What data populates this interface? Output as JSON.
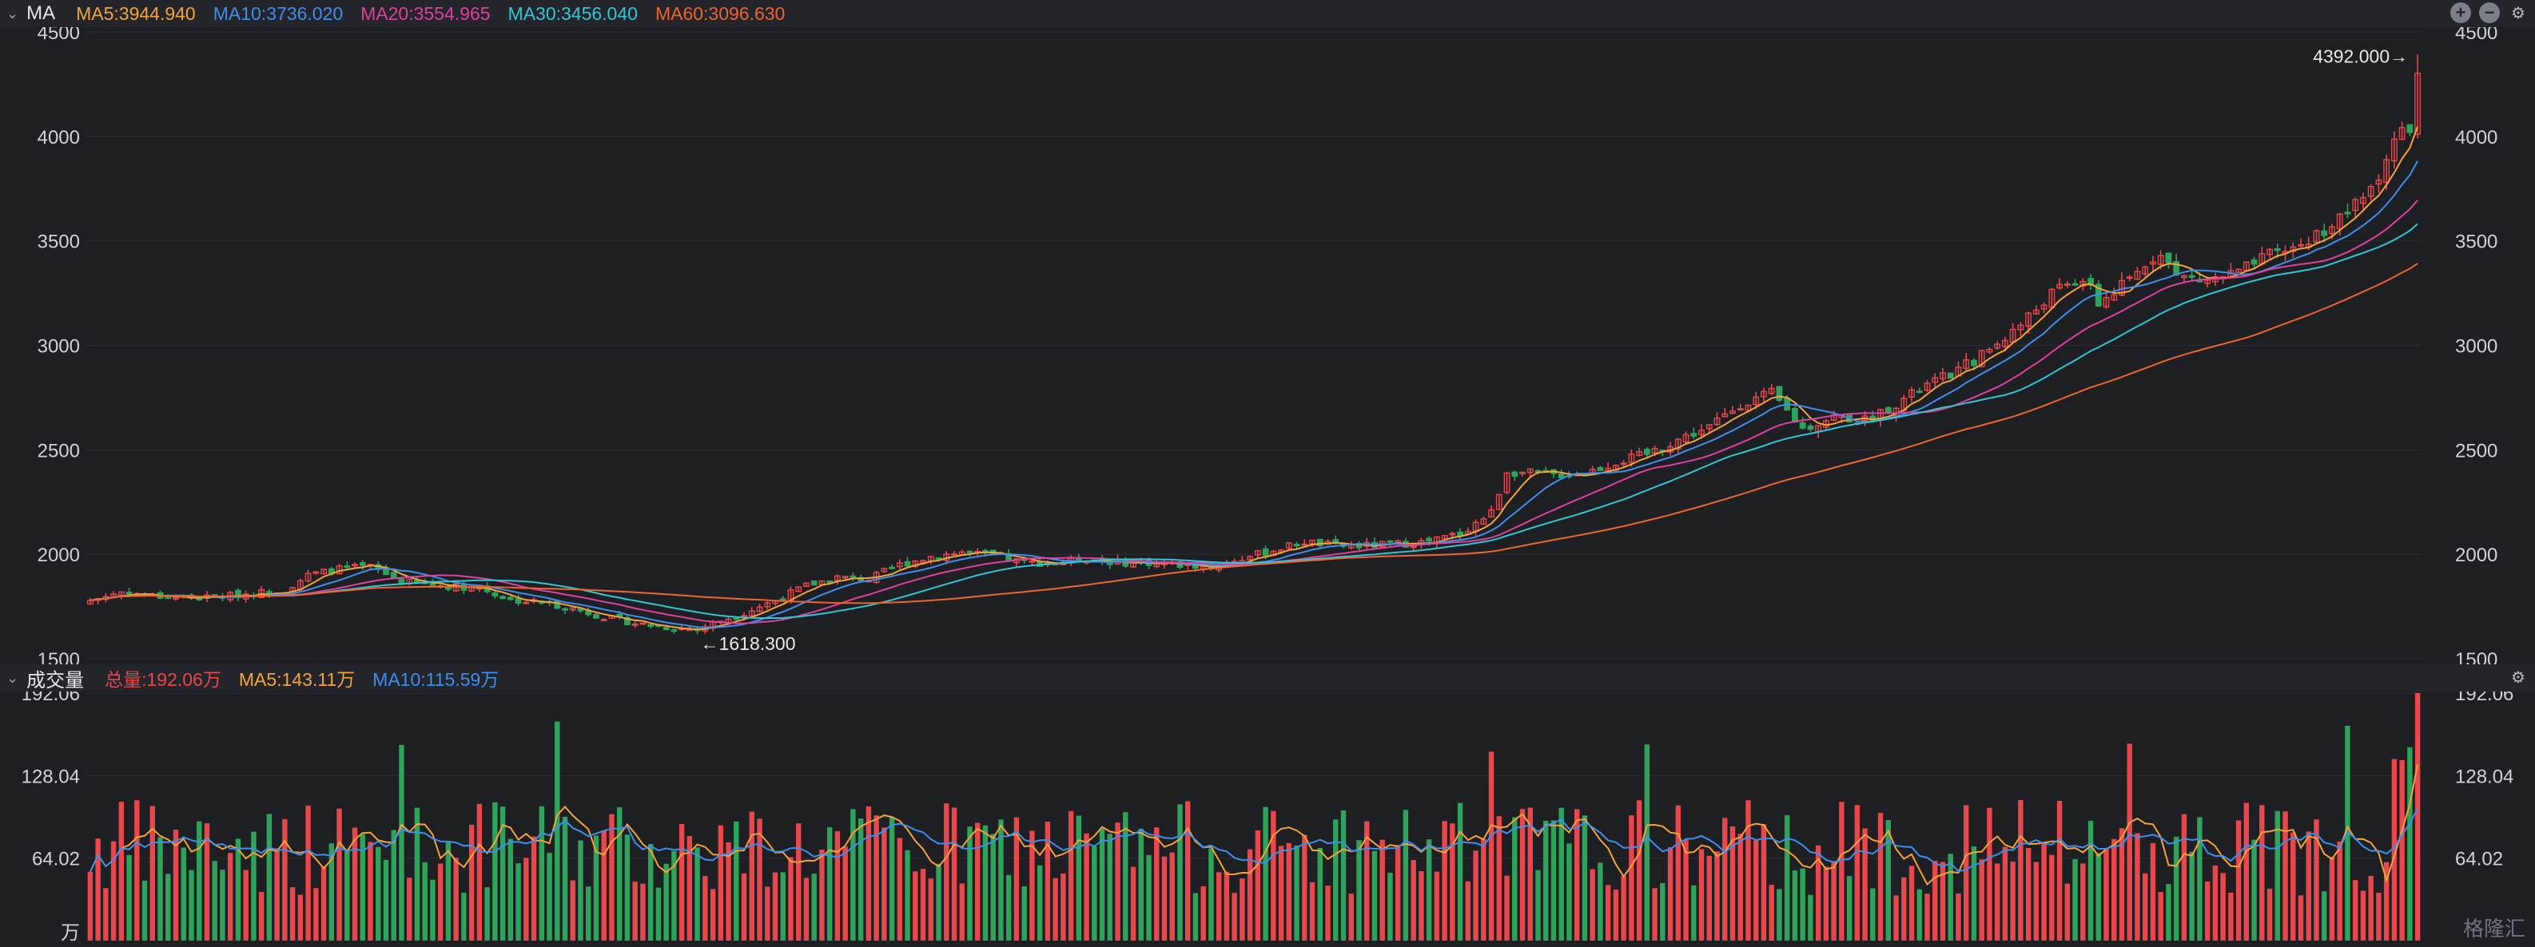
{
  "header_main": {
    "title": "MA",
    "items": [
      {
        "text": "MA5:3944.940",
        "color": "#f5a33a"
      },
      {
        "text": "MA10:3736.020",
        "color": "#3d8ff0"
      },
      {
        "text": "MA20:3554.965",
        "color": "#e0409e"
      },
      {
        "text": "MA30:3456.040",
        "color": "#2fc7d6"
      },
      {
        "text": "MA60:3096.630",
        "color": "#f0642f"
      }
    ],
    "controls": [
      "add-icon",
      "minus-icon",
      "gear-icon"
    ]
  },
  "header_volume": {
    "title": "成交量",
    "items": [
      {
        "text": "总量:192.06万",
        "color": "#e8474b"
      },
      {
        "text": "MA5:143.11万",
        "color": "#f5a33a"
      },
      {
        "text": "MA10:115.59万",
        "color": "#3d8ff0"
      }
    ],
    "controls": [
      "gear-icon"
    ]
  },
  "watermark": "格隆汇",
  "chart_data": [
    {
      "type": "candlestick",
      "title": "",
      "y_ticks": [
        "4500",
        "4000",
        "3500",
        "3000",
        "2500",
        "2000",
        "1500"
      ],
      "ylim": [
        1500,
        4500
      ],
      "annotations": {
        "max_label": "4392.000→",
        "max_value": 4392.0,
        "min_label": "←1618.300",
        "min_value": 1618.3
      },
      "colors": {
        "up": "#e8474b",
        "down": "#2fa35a"
      },
      "close_path": [
        [
          0,
          1780
        ],
        [
          4,
          1820
        ],
        [
          8,
          1800
        ],
        [
          14,
          1790
        ],
        [
          20,
          1810
        ],
        [
          25,
          1830
        ],
        [
          28,
          1900
        ],
        [
          32,
          1930
        ],
        [
          36,
          1940
        ],
        [
          40,
          1870
        ],
        [
          45,
          1850
        ],
        [
          50,
          1840
        ],
        [
          54,
          1780
        ],
        [
          58,
          1770
        ],
        [
          62,
          1740
        ],
        [
          66,
          1700
        ],
        [
          70,
          1670
        ],
        [
          74,
          1650
        ],
        [
          78,
          1640
        ],
        [
          80,
          1670
        ],
        [
          84,
          1720
        ],
        [
          88,
          1780
        ],
        [
          92,
          1850
        ],
        [
          96,
          1890
        ],
        [
          100,
          1880
        ],
        [
          104,
          1950
        ],
        [
          108,
          1990
        ],
        [
          112,
          2010
        ],
        [
          116,
          1990
        ],
        [
          120,
          1960
        ],
        [
          124,
          1960
        ],
        [
          128,
          1980
        ],
        [
          132,
          1960
        ],
        [
          136,
          1960
        ],
        [
          140,
          1950
        ],
        [
          144,
          1940
        ],
        [
          148,
          1980
        ],
        [
          152,
          2020
        ],
        [
          156,
          2060
        ],
        [
          160,
          2040
        ],
        [
          164,
          2040
        ],
        [
          168,
          2050
        ],
        [
          172,
          2060
        ],
        [
          176,
          2100
        ],
        [
          180,
          2200
        ],
        [
          182,
          2400
        ],
        [
          184,
          2390
        ],
        [
          188,
          2380
        ],
        [
          192,
          2390
        ],
        [
          196,
          2440
        ],
        [
          200,
          2480
        ],
        [
          204,
          2550
        ],
        [
          208,
          2610
        ],
        [
          212,
          2720
        ],
        [
          216,
          2770
        ],
        [
          220,
          2600
        ],
        [
          224,
          2660
        ],
        [
          228,
          2640
        ],
        [
          232,
          2720
        ],
        [
          236,
          2810
        ],
        [
          240,
          2880
        ],
        [
          244,
          2980
        ],
        [
          248,
          3100
        ],
        [
          252,
          3250
        ],
        [
          256,
          3320
        ],
        [
          258,
          3200
        ],
        [
          262,
          3310
        ],
        [
          266,
          3460
        ],
        [
          268,
          3330
        ],
        [
          272,
          3310
        ],
        [
          276,
          3350
        ],
        [
          280,
          3430
        ],
        [
          284,
          3480
        ],
        [
          288,
          3580
        ],
        [
          290,
          3640
        ],
        [
          292,
          3700
        ],
        [
          294,
          3820
        ],
        [
          296,
          3980
        ],
        [
          298,
          4050
        ],
        [
          299,
          4300
        ]
      ],
      "volume": {
        "y_ticks": [
          "192.06",
          "128.04",
          "64.02"
        ],
        "unit_label": "万",
        "ylim": [
          0,
          192.06
        ],
        "latest": 192.06
      }
    }
  ]
}
